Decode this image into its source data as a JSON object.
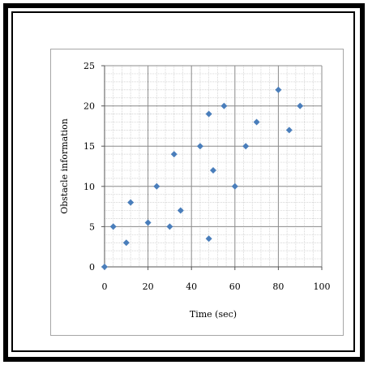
{
  "chart_data": {
    "type": "scatter",
    "title": "",
    "xlabel": "Time (sec)",
    "ylabel": "Obstacle information",
    "xlim": [
      0,
      100
    ],
    "ylim": [
      0,
      25
    ],
    "x_ticks": [
      0,
      20,
      40,
      60,
      80,
      100
    ],
    "y_ticks": [
      0,
      5,
      10,
      15,
      20,
      25
    ],
    "x_tick_labels": [
      "0",
      "20",
      "40",
      "60",
      "80",
      "100"
    ],
    "y_tick_labels": [
      "0",
      "5",
      "10",
      "15",
      "20",
      "25"
    ],
    "x_minor_step": 4,
    "y_minor_step": 1,
    "grid": true,
    "legend": false,
    "marker_color": "#4a7ebb",
    "series": [
      {
        "points": [
          [
            0,
            0
          ],
          [
            4,
            5
          ],
          [
            10,
            3
          ],
          [
            12,
            8
          ],
          [
            20,
            5.5
          ],
          [
            24,
            10
          ],
          [
            30,
            5
          ],
          [
            32,
            14
          ],
          [
            35,
            7
          ],
          [
            44,
            15
          ],
          [
            48,
            3.5
          ],
          [
            48,
            19
          ],
          [
            50,
            12
          ],
          [
            55,
            20
          ],
          [
            60,
            10
          ],
          [
            65,
            15
          ],
          [
            70,
            18
          ],
          [
            80,
            22
          ],
          [
            85,
            17
          ],
          [
            90,
            20
          ]
        ]
      }
    ]
  }
}
